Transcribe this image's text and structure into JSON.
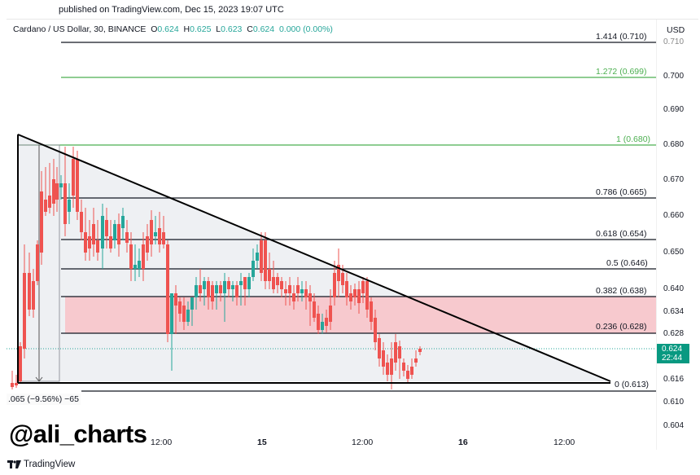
{
  "header": {
    "published": "published on TradingView.com, Dec 15, 2023 19:07 UTC",
    "symbol": "Cardano / US Dollar, 30, BINANCE",
    "ohlc": {
      "o_label": "O",
      "o": "0.624",
      "h_label": "H",
      "h": "0.625",
      "l_label": "L",
      "l": "0.623",
      "c_label": "C",
      "c": "0.624",
      "change": "0.000 (0.00%)"
    }
  },
  "axis": {
    "currency": "USD",
    "price_ticks": [
      "0.710",
      "0.700",
      "0.690",
      "0.680",
      "0.670",
      "0.660",
      "0.650",
      "0.640",
      "0.634",
      "0.628",
      "0.616",
      "0.610",
      "0.604"
    ],
    "current_price": "0.624",
    "countdown": "22:44",
    "time_ticks": [
      "12:00",
      "15",
      "12:00",
      "16",
      "12:00"
    ]
  },
  "measure_label": ".065 (−9.56%) −65",
  "watermark": "@ali_charts",
  "branding": "TradingView",
  "colors": {
    "up": "#26a69a",
    "down": "#ef5350",
    "fib_zone": "#f7c9ce",
    "triangle_fill": "#eef0f3",
    "price_tag": "#089981",
    "fib_green": "#4caf50"
  },
  "chart_data": {
    "type": "candlestick",
    "title": "Cardano / US Dollar, 30, BINANCE",
    "xlabel": "",
    "ylabel": "USD",
    "ylim": [
      0.601,
      0.713
    ],
    "x_ticks": [
      "12:00",
      "15",
      "12:00",
      "16",
      "12:00"
    ],
    "fibonacci_levels": [
      {
        "ratio": "1.414",
        "price": 0.71,
        "label": "1.414 (0.710)"
      },
      {
        "ratio": "1.272",
        "price": 0.699,
        "label": "1.272 (0.699)"
      },
      {
        "ratio": "1",
        "price": 0.68,
        "label": "1 (0.680)"
      },
      {
        "ratio": "0.786",
        "price": 0.665,
        "label": "0.786 (0.665)"
      },
      {
        "ratio": "0.618",
        "price": 0.654,
        "label": "0.618 (0.654)"
      },
      {
        "ratio": "0.5",
        "price": 0.646,
        "label": "0.5 (0.646)"
      },
      {
        "ratio": "0.382",
        "price": 0.638,
        "label": "0.382 (0.638)"
      },
      {
        "ratio": "0.236",
        "price": 0.628,
        "label": "0.236 (0.628)"
      },
      {
        "ratio": "0",
        "price": 0.613,
        "label": "0 (0.613)"
      }
    ],
    "highlight_zone": {
      "from": 0.628,
      "to": 0.638
    },
    "pattern": "descending triangle",
    "last": {
      "open": 0.624,
      "high": 0.625,
      "low": 0.623,
      "close": 0.624
    },
    "measure": {
      "change": -0.065,
      "percent": -9.56,
      "ticks": -65
    }
  }
}
